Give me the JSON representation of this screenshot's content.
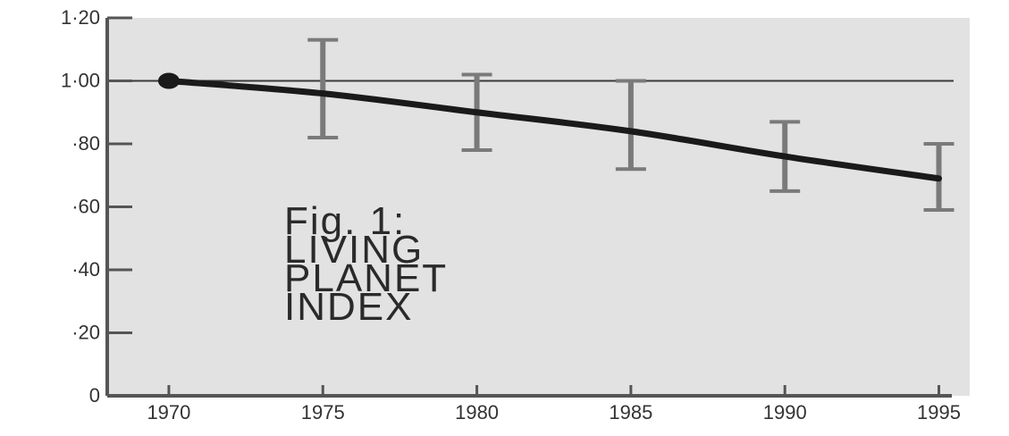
{
  "chart_data": {
    "type": "line",
    "title": "",
    "xlabel": "",
    "ylabel": "",
    "x": [
      1970,
      1975,
      1980,
      1985,
      1990,
      1995
    ],
    "xlim": [
      1968,
      1996
    ],
    "ylim": [
      0,
      1.2
    ],
    "x_ticks": [
      "1970",
      "1975",
      "1980",
      "1985",
      "1990",
      "1995"
    ],
    "y_ticks": [
      {
        "value": 0,
        "label": "0"
      },
      {
        "value": 0.2,
        "label": "·20"
      },
      {
        "value": 0.4,
        "label": "·40"
      },
      {
        "value": 0.6,
        "label": "·60"
      },
      {
        "value": 0.8,
        "label": "·80"
      },
      {
        "value": 1.0,
        "label": "1·00"
      },
      {
        "value": 1.2,
        "label": "1·20"
      }
    ],
    "reference_line": 1.0,
    "grid": false,
    "series": [
      {
        "values": [
          1.0,
          0.96,
          0.9,
          0.84,
          0.76,
          0.69
        ],
        "error_low": [
          1.0,
          0.82,
          0.78,
          0.72,
          0.65,
          0.59
        ],
        "error_high": [
          1.0,
          1.13,
          1.02,
          1.0,
          0.87,
          0.8
        ]
      }
    ],
    "annotation": [
      "Fig. 1:",
      "LIVING",
      "PLANET",
      "INDEX"
    ],
    "colors": {
      "plot_background": "#e2e2e2",
      "line": "#1a1a1a",
      "error_bars": "#7a7a7a",
      "axis": "#555555"
    }
  }
}
